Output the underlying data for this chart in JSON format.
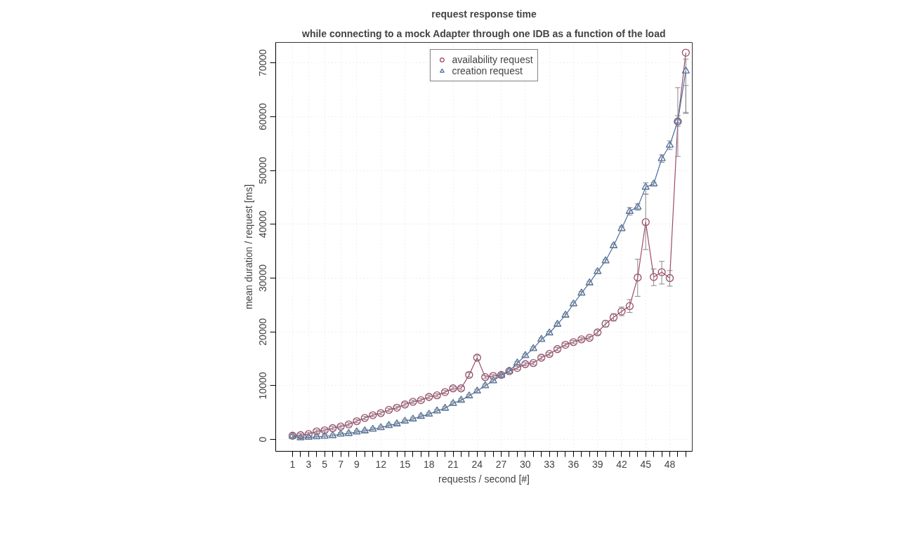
{
  "chart_data": {
    "type": "line",
    "title": "request response time",
    "subtitle": "while connecting to a mock Adapter through one IDB as a function of the load",
    "xlabel": "requests / second [#]",
    "ylabel": "mean duration / request [ms]",
    "x": [
      1,
      2,
      3,
      4,
      5,
      6,
      7,
      8,
      9,
      10,
      11,
      12,
      13,
      14,
      15,
      16,
      17,
      18,
      19,
      20,
      21,
      22,
      23,
      24,
      25,
      26,
      27,
      28,
      29,
      30,
      31,
      32,
      33,
      34,
      35,
      36,
      37,
      38,
      39,
      40,
      41,
      42,
      43,
      44,
      45,
      46,
      47,
      48,
      49,
      50
    ],
    "series": [
      {
        "name": "availability request",
        "color": "#9e4a6a",
        "marker": "circle",
        "values": [
          700,
          800,
          1000,
          1500,
          1700,
          2100,
          2400,
          2800,
          3400,
          4000,
          4500,
          4900,
          5500,
          5900,
          6500,
          7000,
          7300,
          7900,
          8200,
          8800,
          9500,
          9500,
          12000,
          15200,
          11600,
          11800,
          12000,
          12700,
          13300,
          14000,
          14200,
          15200,
          15900,
          16800,
          17600,
          18100,
          18600,
          18900,
          19900,
          21500,
          22700,
          23800,
          24800,
          30100,
          40400,
          30200,
          31100,
          30000,
          59100,
          71900
        ],
        "errors": [
          300,
          300,
          300,
          300,
          300,
          300,
          300,
          300,
          300,
          300,
          300,
          300,
          300,
          300,
          300,
          300,
          300,
          300,
          300,
          300,
          300,
          300,
          400,
          400,
          300,
          300,
          300,
          400,
          300,
          300,
          300,
          300,
          300,
          300,
          300,
          300,
          300,
          300,
          400,
          600,
          700,
          800,
          1200,
          [
            26600,
            33500
          ],
          [
            35300,
            45600
          ],
          [
            28600,
            31700
          ],
          [
            28900,
            33100
          ],
          [
            28500,
            31400
          ],
          [
            52600,
            65400
          ],
          [
            60600,
            70700
          ]
        ]
      },
      {
        "name": "creation request",
        "color": "#4a6fa0",
        "marker": "triangle",
        "values": [
          600,
          300,
          400,
          500,
          600,
          700,
          1000,
          1100,
          1400,
          1600,
          1900,
          2200,
          2600,
          2900,
          3400,
          3800,
          4300,
          4700,
          5300,
          5800,
          6700,
          7300,
          8100,
          9000,
          10000,
          10900,
          11900,
          12700,
          14200,
          15600,
          16900,
          18600,
          19800,
          21400,
          23100,
          25200,
          27200,
          29100,
          31200,
          33200,
          36000,
          39200,
          42400,
          43200,
          46900,
          47500,
          52200,
          54700,
          59200,
          68500
        ],
        "errors": [
          300,
          300,
          300,
          300,
          300,
          300,
          300,
          300,
          300,
          300,
          300,
          300,
          300,
          300,
          300,
          300,
          300,
          300,
          300,
          300,
          300,
          300,
          300,
          300,
          300,
          300,
          300,
          null,
          300,
          300,
          300,
          300,
          300,
          300,
          300,
          300,
          300,
          300,
          300,
          300,
          300,
          400,
          700,
          600,
          [
            45600,
            47700
          ],
          300,
          700,
          800,
          1000,
          [
            60800,
            65800
          ]
        ]
      }
    ],
    "xlim": [
      -1.1,
      50.8
    ],
    "ylim": [
      -2200,
      73800
    ],
    "xticks": [
      1,
      {
        "value": 2,
        "label": null
      },
      3,
      {
        "value": 4,
        "label": null
      },
      5,
      {
        "value": 6,
        "label": null
      },
      7,
      {
        "value": 8,
        "label": null
      },
      9,
      {
        "value": 10,
        "label": null
      },
      {
        "value": 11,
        "label": null
      },
      12,
      {
        "value": 13,
        "label": null
      },
      {
        "value": 14,
        "label": null
      },
      15,
      {
        "value": 16,
        "label": null
      },
      {
        "value": 17,
        "label": null
      },
      18,
      {
        "value": 19,
        "label": null
      },
      {
        "value": 20,
        "label": null
      },
      21,
      {
        "value": 22,
        "label": null
      },
      {
        "value": 23,
        "label": null
      },
      24,
      {
        "value": 25,
        "label": null
      },
      {
        "value": 26,
        "label": null
      },
      27,
      {
        "value": 28,
        "label": null
      },
      {
        "value": 29,
        "label": null
      },
      30,
      {
        "value": 31,
        "label": null
      },
      {
        "value": 32,
        "label": null
      },
      33,
      {
        "value": 34,
        "label": null
      },
      {
        "value": 35,
        "label": null
      },
      36,
      {
        "value": 37,
        "label": null
      },
      {
        "value": 38,
        "label": null
      },
      39,
      {
        "value": 40,
        "label": null
      },
      {
        "value": 41,
        "label": null
      },
      42,
      {
        "value": 43,
        "label": null
      },
      {
        "value": 44,
        "label": null
      },
      45,
      {
        "value": 46,
        "label": null
      },
      {
        "value": 47,
        "label": null
      },
      48,
      {
        "value": 49,
        "label": null
      },
      {
        "value": 50,
        "label": null
      }
    ],
    "yticks": [
      0,
      10000,
      20000,
      30000,
      40000,
      50000,
      60000,
      70000
    ],
    "grid": true,
    "legend": "top",
    "line_style": "solid"
  }
}
